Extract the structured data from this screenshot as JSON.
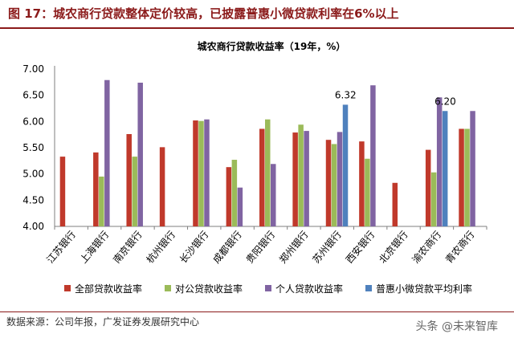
{
  "figure": {
    "title": "图 17：城农商行贷款整体定价较高，已披露普惠小微贷款利率在6%以上",
    "source": "数据来源：公司年报，广发证券发展研究中心",
    "watermark": "头条 @未来智库"
  },
  "chart_data": {
    "type": "bar",
    "title": "城农商行贷款收益率（19年，%）",
    "xlabel": "",
    "ylabel": "",
    "ylim": [
      4.0,
      7.0
    ],
    "yticks": [
      "4.00",
      "4.50",
      "5.00",
      "5.50",
      "6.00",
      "6.50",
      "7.00"
    ],
    "grid": false,
    "legend_position": "bottom",
    "categories": [
      "江苏银行",
      "上海银行",
      "南京银行",
      "杭州银行",
      "长沙银行",
      "成都银行",
      "贵阳银行",
      "郑州银行",
      "苏州银行",
      "西安银行",
      "北京银行",
      "渝农商行",
      "青农商行"
    ],
    "series": [
      {
        "name": "全部贷款收益率",
        "color": "#c0392b",
        "values": [
          5.33,
          5.41,
          5.76,
          5.51,
          6.02,
          5.13,
          5.86,
          5.79,
          5.65,
          5.62,
          4.83,
          5.46,
          5.86
        ]
      },
      {
        "name": "对公贷款收益率",
        "color": "#9bbb59",
        "values": [
          null,
          4.95,
          5.33,
          null,
          6.01,
          5.27,
          6.04,
          5.94,
          5.57,
          5.29,
          null,
          5.03,
          5.86
        ]
      },
      {
        "name": "个人贷款收益率",
        "color": "#8064a2",
        "values": [
          null,
          6.79,
          6.74,
          null,
          6.04,
          4.74,
          5.19,
          5.82,
          5.8,
          6.69,
          null,
          6.46,
          6.2
        ]
      },
      {
        "name": "普惠小微贷款平均利率",
        "color": "#4f81bd",
        "values": [
          null,
          null,
          null,
          null,
          null,
          null,
          null,
          null,
          6.32,
          null,
          null,
          6.2,
          null
        ]
      }
    ],
    "annotations": [
      "6.32",
      "6.20"
    ]
  }
}
